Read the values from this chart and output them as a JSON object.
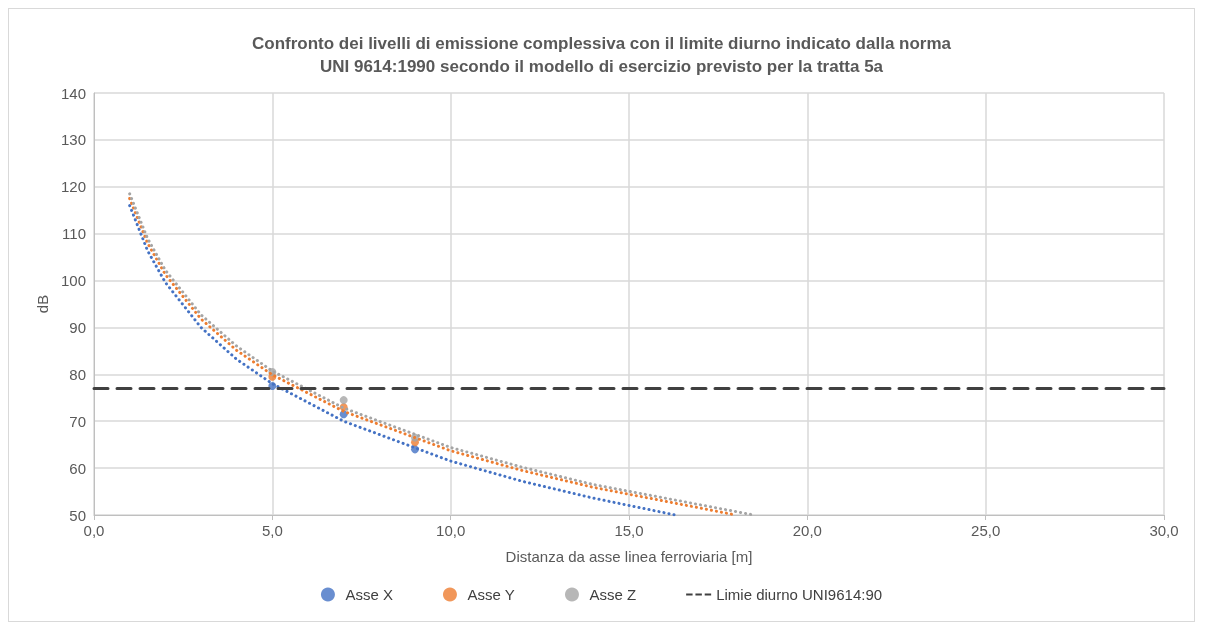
{
  "chart_data": {
    "type": "scatter",
    "title": "Confronto dei livelli di emissione complessiva con il limite diurno indicato dalla norma\nUNI 9614:1990 secondo il modello di esercizio previsto per la tratta 5a",
    "xlabel": "Distanza da asse linea ferroviaria [m]",
    "ylabel": "dB",
    "x": [
      5,
      7,
      9
    ],
    "series": [
      {
        "name": "Asse X",
        "color": "#4472c4",
        "values": [
          77.5,
          71.5,
          64
        ]
      },
      {
        "name": "Asse Y",
        "color": "#ed7d31",
        "values": [
          79.5,
          73,
          65.5
        ]
      },
      {
        "name": "Asse Z",
        "color": "#a5a5a5",
        "values": [
          80.5,
          74.5,
          66.5
        ]
      },
      {
        "type": "line",
        "color": "#4472c4",
        "marker": "none",
        "line_style": "dotted",
        "x": [
          1,
          1.5,
          2,
          3,
          4,
          5,
          7,
          10,
          12,
          14,
          16.3
        ],
        "values": [
          116,
          106.4,
          99.6,
          90,
          83.2,
          78,
          70,
          61.5,
          57.2,
          53.6,
          50
        ]
      },
      {
        "type": "line",
        "color": "#ed7d31",
        "marker": "none",
        "line_style": "dotted",
        "x": [
          1,
          1.5,
          2,
          3,
          4,
          5,
          7,
          10,
          12,
          14,
          18
        ],
        "values": [
          117.5,
          108,
          101.3,
          91.8,
          85.1,
          79.9,
          72.1,
          63.7,
          59.5,
          55.9,
          50
        ]
      },
      {
        "type": "line",
        "color": "#a5a5a5",
        "marker": "none",
        "line_style": "dotted",
        "x": [
          1,
          1.5,
          2,
          3,
          4,
          5,
          7,
          10,
          12,
          14,
          18.5
        ],
        "values": [
          118.5,
          109,
          102.2,
          92.7,
          86,
          80.7,
          72.8,
          64.4,
          60.2,
          56.5,
          50
        ]
      },
      {
        "type": "line",
        "name": "Limie diurno UNI9614:90",
        "color": "#404040",
        "marker": "none",
        "line_style": "dashed",
        "x": [
          0,
          30
        ],
        "values": [
          77,
          77
        ]
      }
    ],
    "xlim": [
      0,
      30
    ],
    "xticks": [
      {
        "value": 0,
        "label": "0,0"
      },
      {
        "value": 5,
        "label": "5,0"
      },
      {
        "value": 10,
        "label": "10,0"
      },
      {
        "value": 15,
        "label": "15,0"
      },
      {
        "value": 20,
        "label": "20,0"
      },
      {
        "value": 25,
        "label": "25,0"
      },
      {
        "value": 30,
        "label": "30,0"
      }
    ],
    "ylim": [
      50,
      140
    ],
    "yticks": [
      50,
      60,
      70,
      80,
      90,
      100,
      110,
      120,
      130,
      140
    ],
    "grid": true,
    "legend": "bottom",
    "marker": "circle"
  }
}
